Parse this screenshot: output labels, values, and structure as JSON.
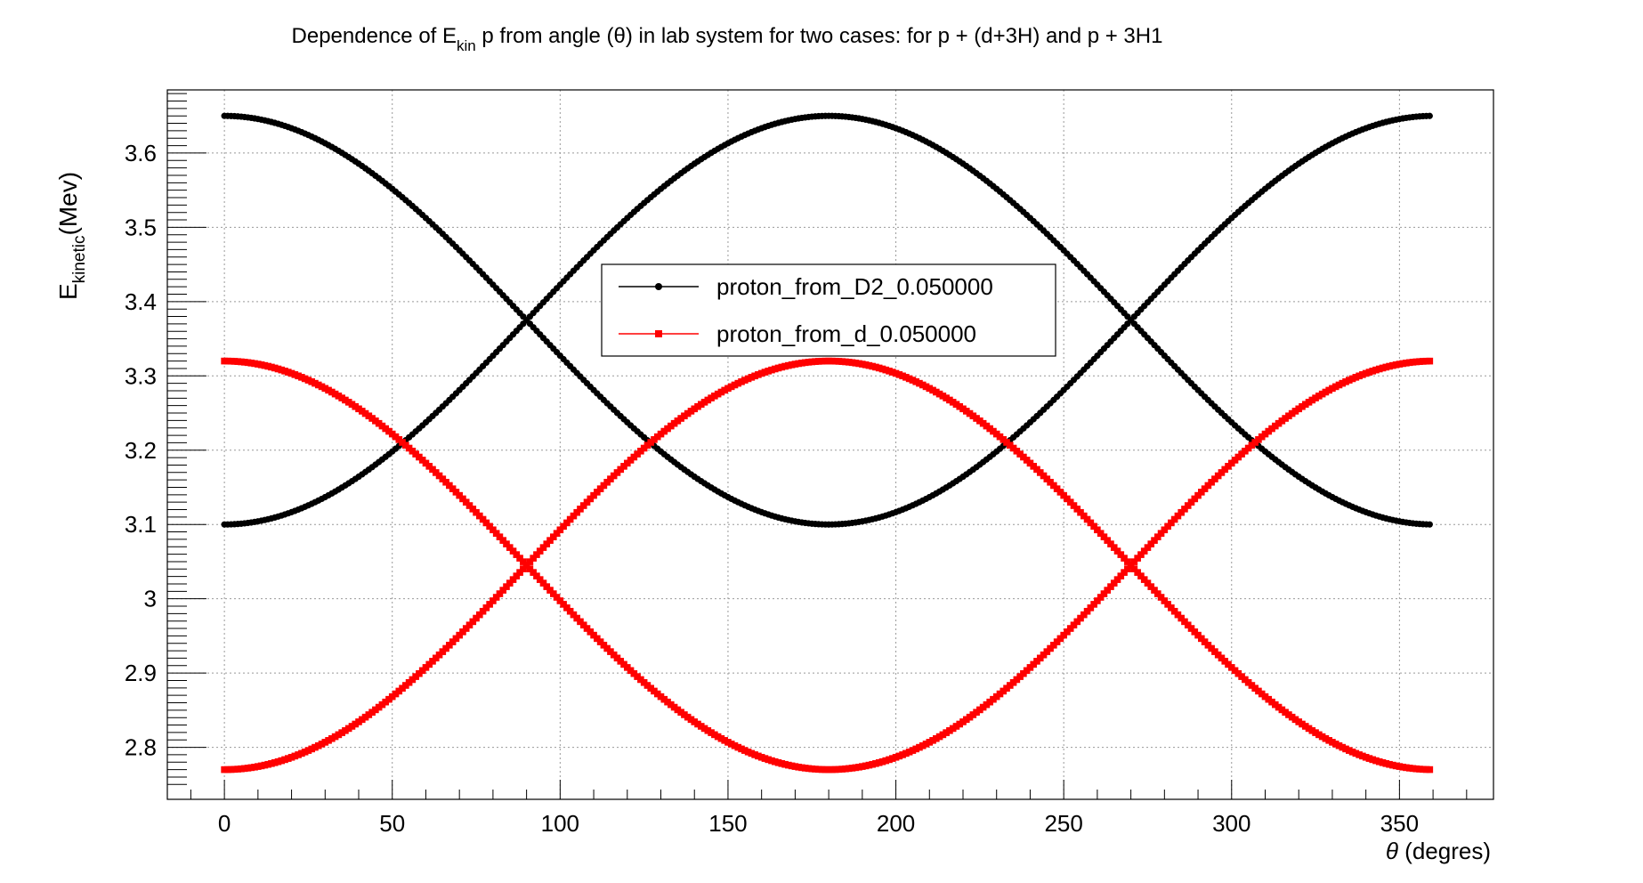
{
  "chart_data": {
    "type": "scatter",
    "title": {
      "prefix": "Dependence of E",
      "sub": "kin",
      "suffix": " p from angle (θ) in lab system for two cases: for p + (d+3H) and p + 3H1"
    },
    "xlabel": {
      "symbol": "θ",
      "text": " (degres)"
    },
    "ylabel": {
      "main": "E",
      "sub": "kinetic",
      "rest": "(Mev)"
    },
    "xlim": [
      -17,
      378
    ],
    "ylim": [
      2.73,
      3.685
    ],
    "grid": true,
    "x_ticks": [
      0,
      50,
      100,
      150,
      200,
      250,
      300,
      350
    ],
    "y_ticks": [
      2.8,
      2.9,
      3.0,
      3.1,
      3.2,
      3.3,
      3.4,
      3.5,
      3.6
    ],
    "y_tick_labels": [
      "2.8",
      "2.9",
      "3",
      "3.1",
      "3.2",
      "3.3",
      "3.4",
      "3.5",
      "3.6"
    ],
    "x_range": [
      0,
      359
    ],
    "x_step": 1,
    "series": [
      {
        "name": "proton_from_D2_0.050000",
        "color": "#000000",
        "marker": "circle",
        "branches": [
          {
            "at_0": 3.65,
            "at_180": 3.1
          },
          {
            "at_0": 3.1,
            "at_180": 3.65
          }
        ]
      },
      {
        "name": "proton_from_d_0.050000",
        "color": "#ff0000",
        "marker": "square",
        "branches": [
          {
            "at_0": 3.32,
            "at_180": 2.77
          },
          {
            "at_0": 2.77,
            "at_180": 3.32
          }
        ]
      }
    ],
    "legend": {
      "placement": "top-center"
    }
  }
}
